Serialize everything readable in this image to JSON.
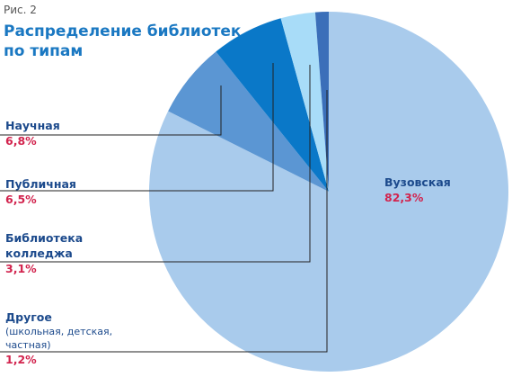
{
  "chart_data": {
    "type": "pie",
    "figure_label": "Рис. 2",
    "title": "Распределение библиотек по типам",
    "categories": [
      "Вузовская",
      "Научная",
      "Публичная",
      "Библиотека колледжа",
      "Другое"
    ],
    "values": [
      82.3,
      6.8,
      6.5,
      3.1,
      1.2
    ],
    "value_labels": [
      "82,3%",
      "6,8%",
      "6,5%",
      "3,1%",
      "1,2%"
    ],
    "colors": [
      "#a9cbec",
      "#5b96d3",
      "#0a78c8",
      "#a8dcf8",
      "#3b6fb9"
    ],
    "annotation": "(школьная, детская, частная)"
  }
}
